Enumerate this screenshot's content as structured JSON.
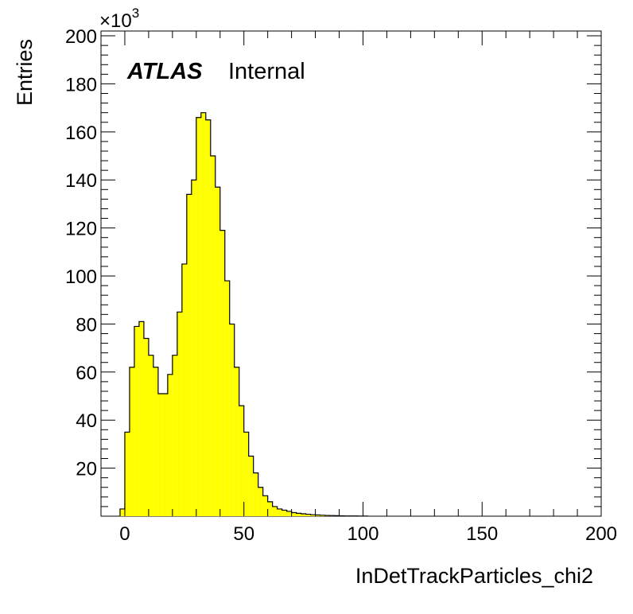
{
  "chart_data": {
    "type": "bar",
    "histogram": true,
    "xlabel": "InDetTrackParticles_chi2",
    "ylabel": "Entries",
    "y_multiplier": "×10",
    "y_multiplier_exponent": "3",
    "xlim": [
      -10,
      200
    ],
    "ylim": [
      0,
      202
    ],
    "x_ticks": [
      0,
      50,
      100,
      150,
      200
    ],
    "y_ticks": [
      20,
      40,
      60,
      80,
      100,
      120,
      140,
      160,
      180,
      200
    ],
    "bin_width": 2,
    "bin_edges_start": -2,
    "values": [
      3,
      35,
      62,
      79,
      81,
      74,
      67,
      62,
      51,
      51,
      59,
      67,
      85,
      105,
      134,
      140,
      166,
      168,
      165,
      150,
      137,
      119,
      98,
      80,
      62,
      46,
      35,
      25,
      18,
      12,
      8.5,
      6,
      4,
      3,
      2.5,
      2,
      1.5,
      1.2,
      1,
      0.8,
      0.6,
      0.5,
      0.4,
      0.3,
      0.25,
      0.2,
      0.15,
      0.1,
      0.1,
      0.1,
      0.05,
      0.05
    ],
    "fill_color": "#ffff00",
    "line_color": "#000000",
    "grid": false,
    "legend": "none"
  },
  "annotation": {
    "atlas": "ATLAS",
    "internal": "Internal"
  }
}
